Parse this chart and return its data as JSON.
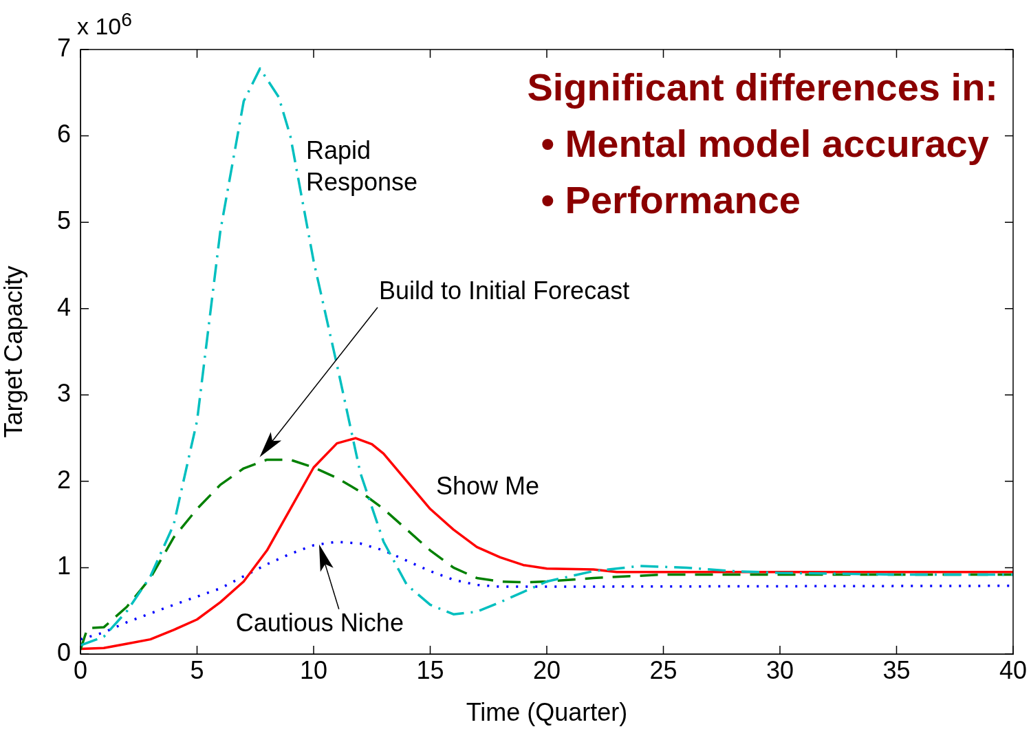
{
  "chart_data": {
    "type": "line",
    "xlabel": "Time (Quarter)",
    "ylabel": "Target Capacity",
    "xlim": [
      0,
      40
    ],
    "ylim": [
      0,
      7
    ],
    "xticks": [
      0,
      5,
      10,
      15,
      20,
      25,
      30,
      35,
      40
    ],
    "yticks": [
      0,
      1,
      2,
      3,
      4,
      5,
      6,
      7
    ],
    "grid": false,
    "legend": false,
    "marker": "none",
    "series": [
      {
        "color": "#00bfbf",
        "line_style": "dashdot",
        "x": [
          0,
          1,
          2,
          3,
          4,
          5,
          6,
          7,
          7.7,
          8.5,
          9,
          10,
          11,
          12,
          13,
          14,
          15,
          16,
          17,
          18,
          19,
          20,
          22,
          24,
          26,
          28,
          30,
          35,
          40
        ],
        "values": [
          0.1,
          0.2,
          0.5,
          0.9,
          1.5,
          2.7,
          4.9,
          6.4,
          6.78,
          6.45,
          6.0,
          4.55,
          3.35,
          2.1,
          1.3,
          0.8,
          0.57,
          0.46,
          0.49,
          0.6,
          0.72,
          0.84,
          0.96,
          1.02,
          1.0,
          0.96,
          0.94,
          0.92,
          0.92
        ]
      },
      {
        "color": "#008000",
        "line_style": "dashed",
        "x": [
          0,
          0.3,
          1,
          2,
          3,
          4,
          5,
          6,
          7,
          8,
          9,
          10,
          11,
          12,
          13,
          14,
          15,
          16,
          17,
          18,
          19,
          20,
          22,
          25,
          30,
          40
        ],
        "values": [
          0.05,
          0.3,
          0.31,
          0.55,
          0.88,
          1.35,
          1.68,
          1.96,
          2.15,
          2.25,
          2.25,
          2.16,
          2.04,
          1.88,
          1.68,
          1.44,
          1.2,
          1.0,
          0.88,
          0.84,
          0.83,
          0.84,
          0.88,
          0.92,
          0.92,
          0.92
        ]
      },
      {
        "color": "#ff0000",
        "line_style": "solid",
        "x": [
          0,
          1,
          2,
          3,
          4,
          5,
          6,
          7,
          8,
          9,
          10,
          11,
          11.8,
          12.5,
          13,
          14,
          15,
          16,
          17,
          18,
          19,
          20,
          22,
          23,
          30,
          40
        ],
        "values": [
          0.06,
          0.07,
          0.12,
          0.17,
          0.28,
          0.4,
          0.6,
          0.84,
          1.2,
          1.68,
          2.16,
          2.44,
          2.5,
          2.43,
          2.32,
          2.0,
          1.68,
          1.44,
          1.24,
          1.12,
          1.03,
          0.99,
          0.98,
          0.95,
          0.95,
          0.95
        ]
      },
      {
        "color": "#0000ff",
        "line_style": "dotted",
        "x": [
          0,
          1,
          2,
          4,
          6,
          8,
          9,
          10,
          11,
          12,
          13,
          14,
          15,
          16,
          17,
          18,
          20,
          40
        ],
        "values": [
          0.17,
          0.25,
          0.37,
          0.57,
          0.76,
          1.04,
          1.16,
          1.26,
          1.3,
          1.28,
          1.2,
          1.08,
          0.96,
          0.86,
          0.8,
          0.78,
          0.78,
          0.79
        ]
      }
    ],
    "annotations": [
      "x 10$^{6}$",
      "Significant differences in:",
      "• Mental model accuracy",
      "• Performance",
      "Rapid\nResponse",
      "Build to Initial Forecast",
      {
        "text": "Show Me",
        "x": 14.6,
        "y": 1.8
      },
      {
        "text": "Cautious Niche",
        "x": 10.2,
        "y": 1.3
      }
    ]
  }
}
